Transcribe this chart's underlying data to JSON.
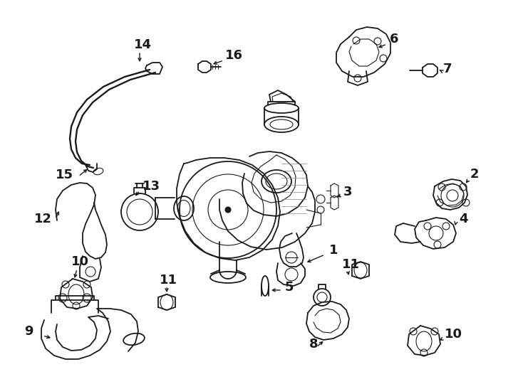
{
  "bg_color": "#ffffff",
  "line_color": "#1a1a1a",
  "figsize": [
    7.34,
    5.4
  ],
  "dpi": 100,
  "label_fontsize": 13,
  "arrow_lw": 1.0,
  "parts_lw": 1.3,
  "thin_lw": 0.8
}
